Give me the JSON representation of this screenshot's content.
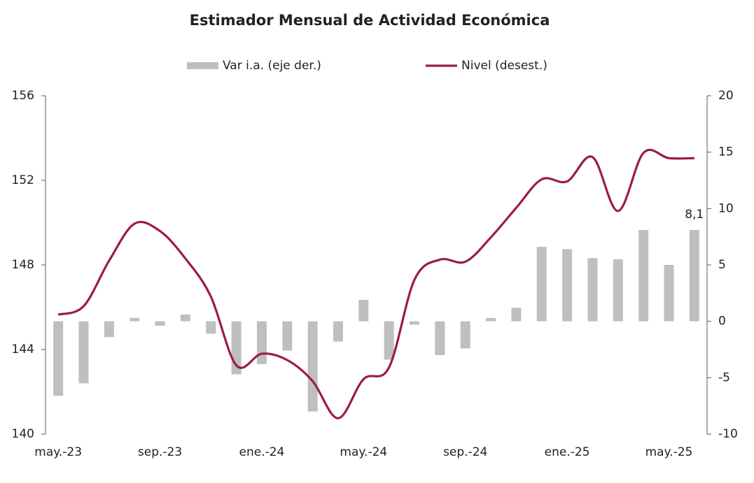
{
  "chart_data": {
    "type": "bar-line",
    "title": "Estimador Mensual de Actividad Económica",
    "categories": [
      "may.-23",
      null,
      null,
      null,
      "sep.-23",
      null,
      null,
      null,
      "ene.-24",
      null,
      null,
      null,
      "may.-24",
      null,
      null,
      null,
      "sep.-24",
      null,
      null,
      null,
      "ene.-25",
      null,
      null,
      null,
      "may.-25",
      null
    ],
    "series": [
      {
        "name": "Var i.a. (eje der.)",
        "color": "#bfbfbf",
        "axis": "y2",
        "values": [
          -6.6,
          -5.5,
          -1.4,
          0.3,
          -0.4,
          0.6,
          -1.1,
          -4.7,
          -3.8,
          -2.6,
          -8.0,
          -1.8,
          1.9,
          -3.4,
          -0.3,
          -3.0,
          -2.4,
          0.3,
          1.2,
          6.6,
          6.4,
          5.6,
          5.5,
          8.1,
          5.0,
          8.1
        ],
        "value_labels": [
          null,
          null,
          null,
          null,
          null,
          null,
          null,
          null,
          null,
          null,
          null,
          null,
          null,
          null,
          null,
          null,
          null,
          null,
          null,
          null,
          null,
          null,
          null,
          null,
          null,
          "8,1"
        ]
      },
      {
        "name": "Nivel (desest.)",
        "color": "#9b1c47",
        "values": [
          145.65,
          146.05,
          148.2,
          149.95,
          149.6,
          148.3,
          146.5,
          143.25,
          143.8,
          143.5,
          142.5,
          140.75,
          142.6,
          143.15,
          147.3,
          148.25,
          148.15,
          149.3,
          150.7,
          152.05,
          151.95,
          153.1,
          150.55,
          153.3,
          153.05,
          153.05
        ]
      }
    ],
    "ylim": [
      140,
      156
    ],
    "yticks": [
      140,
      144,
      148,
      152,
      156
    ],
    "y2lim": [
      -10,
      20
    ],
    "y2ticks": [
      -10,
      -5,
      0,
      5,
      10,
      15,
      20
    ]
  }
}
